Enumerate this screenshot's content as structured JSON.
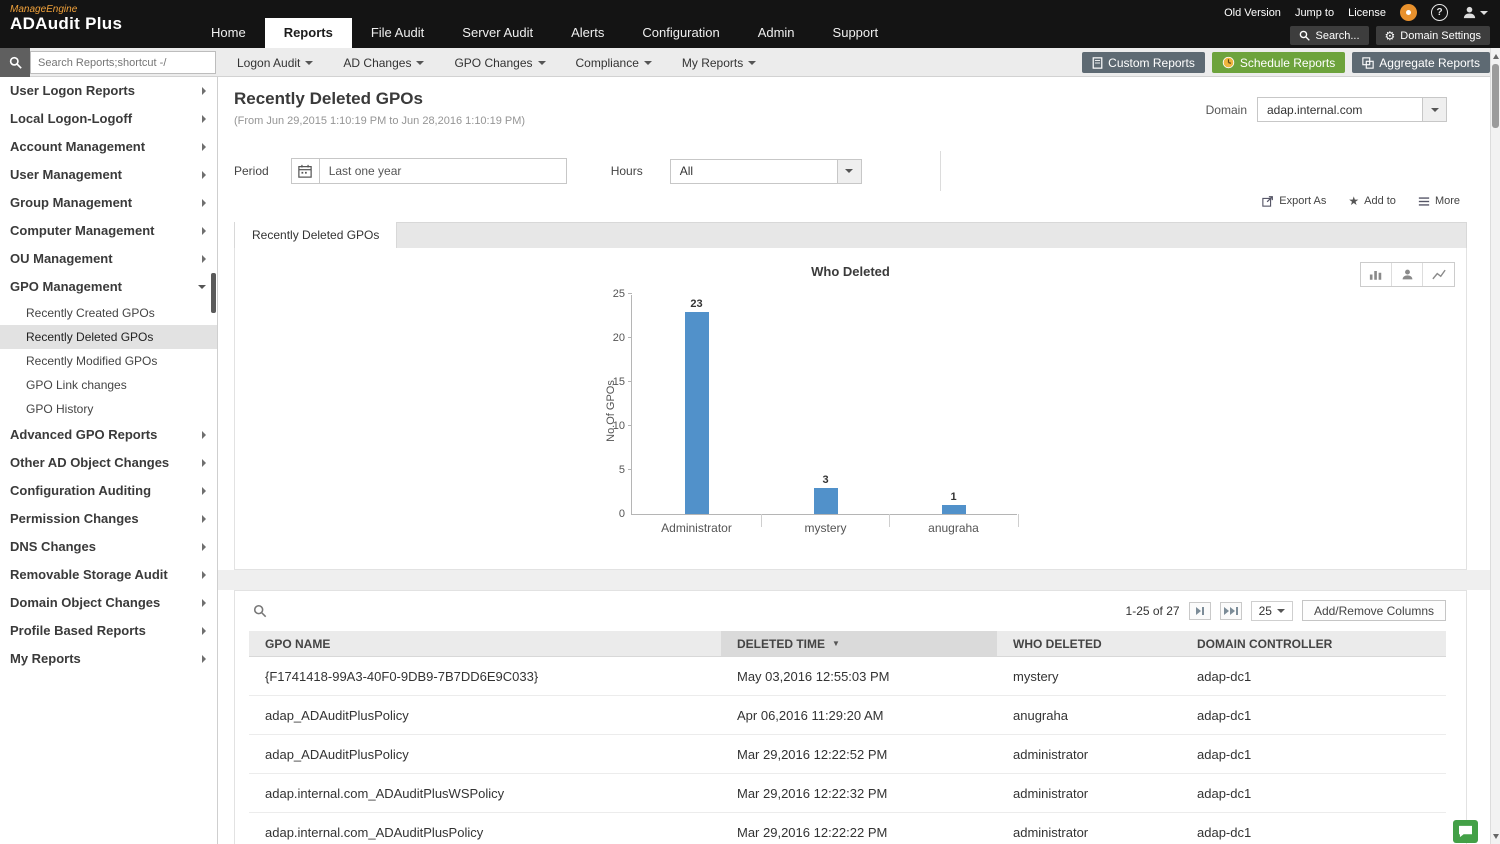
{
  "colors": {
    "accent_green": "#6da33c",
    "bar_blue": "#5191ca",
    "brand_orange": "#f0a13a"
  },
  "topbar": {
    "brand_line1": "ManageEngine",
    "brand_line2": "ADAudit Plus",
    "nav": [
      "Home",
      "Reports",
      "File Audit",
      "Server Audit",
      "Alerts",
      "Configuration",
      "Admin",
      "Support"
    ],
    "active_nav": "Reports",
    "links": {
      "old_version": "Old Version",
      "jump_to": "Jump to",
      "license": "License"
    },
    "search_label": "Search...",
    "domain_settings_label": "Domain Settings"
  },
  "toolbar": {
    "search_placeholder": "Search Reports;shortcut -/",
    "menus": [
      "Logon Audit",
      "AD Changes",
      "GPO Changes",
      "Compliance",
      "My Reports"
    ],
    "custom_reports": "Custom Reports",
    "schedule_reports": "Schedule Reports",
    "aggregate_reports": "Aggregate Reports"
  },
  "sidebar": {
    "items": [
      "User Logon Reports",
      "Local Logon-Logoff",
      "Account Management",
      "User Management",
      "Group Management",
      "Computer Management",
      "OU Management",
      "GPO Management",
      "Advanced GPO Reports",
      "Other AD Object Changes",
      "Configuration Auditing",
      "Permission Changes",
      "DNS Changes",
      "Removable Storage Audit",
      "Domain Object Changes",
      "Profile Based Reports",
      "My Reports"
    ],
    "gpo_children": [
      "Recently Created GPOs",
      "Recently Deleted GPOs",
      "Recently Modified GPOs",
      "GPO Link changes",
      "GPO History"
    ],
    "selected_child": "Recently Deleted GPOs"
  },
  "page": {
    "title": "Recently Deleted GPOs",
    "subtitle": "(From Jun 29,2015 1:10:19 PM to Jun 28,2016 1:10:19 PM)",
    "domain_label": "Domain",
    "domain_value": "adap.internal.com",
    "tab_label": "Recently Deleted GPOs"
  },
  "filters": {
    "period_label": "Period",
    "period_value": "Last one year",
    "hours_label": "Hours",
    "hours_value": "All"
  },
  "actions": {
    "export_as": "Export As",
    "add_to": "Add to",
    "more": "More"
  },
  "chart_data": {
    "type": "bar",
    "title": "Who Deleted",
    "categories": [
      "Administrator",
      "mystery",
      "anugraha"
    ],
    "values": [
      23,
      3,
      1
    ],
    "xlabel": "",
    "ylabel": "No.Of GPOs",
    "ylim": [
      0,
      25
    ],
    "yticks": [
      0,
      5,
      10,
      15,
      20,
      25
    ],
    "grid": false,
    "legend": "none",
    "bar_color": "#5191ca"
  },
  "table": {
    "pagination": "1-25 of 27",
    "page_size": "25",
    "add_remove_columns": "Add/Remove Columns",
    "sorted_column": "DELETED TIME",
    "columns": [
      "GPO NAME",
      "DELETED TIME",
      "WHO DELETED",
      "DOMAIN CONTROLLER"
    ],
    "rows": [
      [
        "{F1741418-99A3-40F0-9DB9-7B7DD6E9C033}",
        "May 03,2016 12:55:03 PM",
        "mystery",
        "adap-dc1"
      ],
      [
        "adap_ADAuditPlusPolicy",
        "Apr 06,2016 11:29:20 AM",
        "anugraha",
        "adap-dc1"
      ],
      [
        "adap_ADAuditPlusPolicy",
        "Mar 29,2016 12:22:52 PM",
        "administrator",
        "adap-dc1"
      ],
      [
        "adap.internal.com_ADAuditPlusWSPolicy",
        "Mar 29,2016 12:22:32 PM",
        "administrator",
        "adap-dc1"
      ],
      [
        "adap.internal.com_ADAuditPlusPolicy",
        "Mar 29,2016 12:22:22 PM",
        "administrator",
        "adap-dc1"
      ]
    ]
  },
  "icons": {
    "search-icon": "magnifier shape",
    "gear-icon": "⚙",
    "calendar-icon": "calendar shape",
    "clock-icon": "clock shape",
    "star-icon": "★",
    "sort-desc-icon": "▼",
    "chat-icon": "speech bubble"
  }
}
